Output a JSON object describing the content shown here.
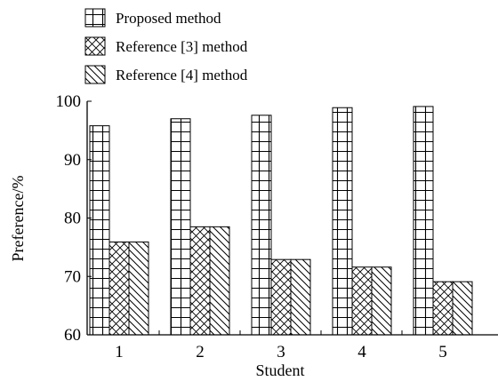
{
  "chart_data": {
    "type": "bar",
    "categories": [
      "1",
      "2",
      "3",
      "4",
      "5"
    ],
    "series": [
      {
        "name": "Proposed method",
        "values": [
          95.8,
          97.0,
          97.6,
          98.9,
          99.1
        ],
        "pattern": "grid"
      },
      {
        "name": "Reference [3] method",
        "values": [
          75.9,
          78.5,
          72.9,
          71.6,
          69.1
        ],
        "pattern": "crosshatch"
      },
      {
        "name": "Reference [4] method",
        "values": [
          75.9,
          78.5,
          72.9,
          71.6,
          69.1
        ],
        "pattern": "backslash"
      }
    ],
    "xlabel": "Student",
    "ylabel": "Preference/%",
    "ylim": [
      60,
      100
    ],
    "yticks": [
      60,
      70,
      80,
      90,
      100
    ],
    "grid": false,
    "legend_position": "top-left"
  }
}
